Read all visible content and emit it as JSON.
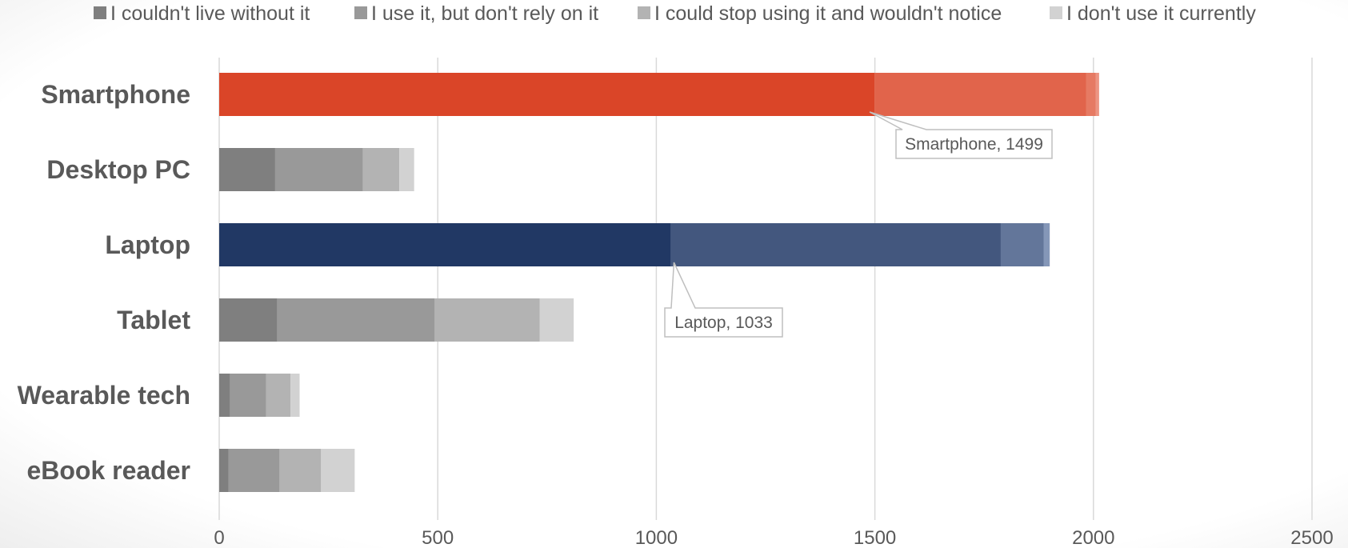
{
  "chart_data": {
    "type": "bar",
    "orientation": "horizontal",
    "stacked": true,
    "title": "",
    "xlabel": "",
    "ylabel": "",
    "categories": [
      "Smartphone",
      "Desktop PC",
      "Laptop",
      "Tablet",
      "Wearable tech",
      "eBook reader"
    ],
    "series": [
      {
        "name": "I couldn't live without it",
        "values": [
          1499,
          128,
          1033,
          133,
          25,
          21
        ],
        "color": "#7f7f7f"
      },
      {
        "name": "I use it, but don't rely on it",
        "values": [
          484,
          201,
          755,
          360,
          82,
          117
        ],
        "color": "#999999"
      },
      {
        "name": "I could stop using it and wouldn't notice",
        "values": [
          22,
          83,
          98,
          240,
          56,
          95
        ],
        "color": "#b3b3b3"
      },
      {
        "name": "I don't use it currently",
        "values": [
          8,
          34,
          14,
          78,
          21,
          77
        ],
        "color": "#d2d2d2"
      }
    ],
    "highlight_colors": {
      "Smartphone": [
        "#da4528",
        "#e1644b",
        "#e67a63",
        "#ec9583"
      ],
      "Laptop": [
        "#213864",
        "#43577e",
        "#63769a",
        "#8597b8"
      ]
    },
    "xlim": [
      0,
      2500
    ],
    "xticks": [
      0,
      500,
      1000,
      1500,
      2000,
      2500
    ],
    "grid": true,
    "legend": "top",
    "annotations": [
      {
        "category": "Smartphone",
        "series_index": 0,
        "text": "Smartphone, 1499"
      },
      {
        "category": "Laptop",
        "series_index": 0,
        "text": "Laptop, 1033"
      }
    ]
  }
}
